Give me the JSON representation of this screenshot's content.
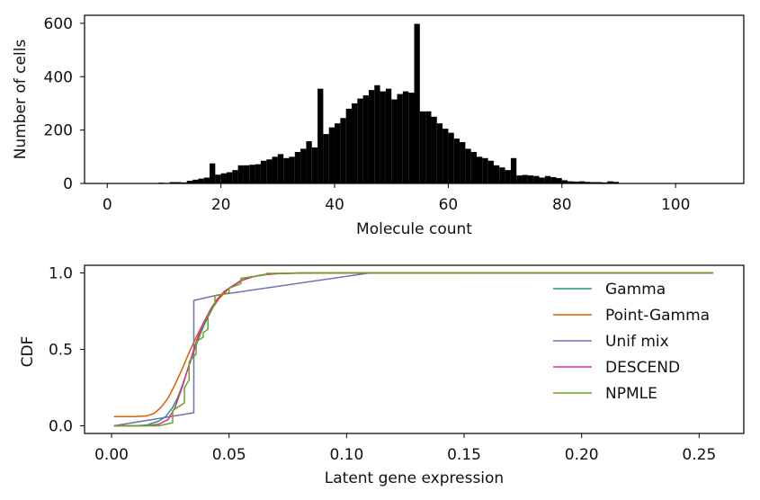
{
  "chart_data": [
    {
      "type": "bar",
      "xlabel": "Molecule count",
      "ylabel": "Number of cells",
      "xlim": [
        -4,
        112
      ],
      "ylim": [
        0,
        630
      ],
      "xticks": [
        0,
        20,
        40,
        60,
        80,
        100
      ],
      "yticks": [
        0,
        200,
        400,
        600
      ],
      "bin_width": 1,
      "bin_start": 9,
      "values": [
        3,
        2,
        5,
        5,
        4,
        10,
        14,
        18,
        22,
        75,
        33,
        38,
        42,
        50,
        68,
        68,
        70,
        72,
        85,
        90,
        100,
        110,
        95,
        100,
        118,
        130,
        158,
        135,
        355,
        185,
        210,
        225,
        245,
        280,
        300,
        318,
        330,
        350,
        368,
        345,
        355,
        315,
        335,
        345,
        340,
        598,
        270,
        270,
        250,
        225,
        205,
        190,
        168,
        155,
        130,
        118,
        100,
        95,
        85,
        68,
        60,
        50,
        95,
        30,
        32,
        30,
        28,
        22,
        28,
        24,
        20,
        12,
        8,
        7,
        8,
        6,
        5,
        5,
        4,
        8,
        6
      ]
    },
    {
      "type": "line",
      "xlabel": "Latent gene expression",
      "ylabel": "CDF",
      "xlim": [
        -0.0115,
        0.269
      ],
      "ylim": [
        -0.05,
        1.05
      ],
      "xticks": [
        0.0,
        0.05,
        0.1,
        0.15,
        0.2,
        0.25
      ],
      "xtick_labels": [
        "0.00",
        "0.05",
        "0.10",
        "0.15",
        "0.20",
        "0.25"
      ],
      "yticks": [
        0.0,
        0.5,
        1.0
      ],
      "ytick_labels": [
        "0.0",
        "0.5",
        "1.0"
      ],
      "legend_position": "top-right",
      "series": [
        {
          "name": "Gamma",
          "color": "#1b9e77",
          "x": [
            0.001,
            0.01,
            0.015,
            0.02,
            0.023,
            0.026,
            0.028,
            0.03,
            0.032,
            0.034,
            0.036,
            0.038,
            0.04,
            0.043,
            0.046,
            0.05,
            0.055,
            0.06,
            0.065,
            0.07,
            0.08,
            0.1,
            0.15,
            0.2,
            0.256
          ],
          "y": [
            0.0,
            0.0,
            0.005,
            0.03,
            0.06,
            0.12,
            0.18,
            0.26,
            0.35,
            0.44,
            0.53,
            0.61,
            0.68,
            0.77,
            0.84,
            0.9,
            0.95,
            0.975,
            0.988,
            0.995,
            0.999,
            1.0,
            1.0,
            1.0,
            1.0
          ]
        },
        {
          "name": "Point-Gamma",
          "color": "#d95f02",
          "x": [
            0.001,
            0.005,
            0.01,
            0.015,
            0.018,
            0.021,
            0.024,
            0.027,
            0.03,
            0.033,
            0.036,
            0.039,
            0.042,
            0.045,
            0.05,
            0.055,
            0.06,
            0.065,
            0.07,
            0.08,
            0.1,
            0.15,
            0.2,
            0.256
          ],
          "y": [
            0.06,
            0.06,
            0.06,
            0.065,
            0.08,
            0.12,
            0.18,
            0.27,
            0.37,
            0.48,
            0.58,
            0.67,
            0.75,
            0.82,
            0.9,
            0.95,
            0.975,
            0.988,
            0.995,
            0.999,
            1.0,
            1.0,
            1.0,
            1.0
          ]
        },
        {
          "name": "Unif mix",
          "color": "#7570b3",
          "x": [
            0.001,
            0.035,
            0.035,
            0.045,
            0.11,
            0.256
          ],
          "y": [
            0.0,
            0.085,
            0.82,
            0.855,
            1.0,
            1.0
          ]
        },
        {
          "name": "DESCEND",
          "color": "#e7298a",
          "x": [
            0.001,
            0.015,
            0.02,
            0.024,
            0.027,
            0.03,
            0.033,
            0.036,
            0.039,
            0.042,
            0.045,
            0.048,
            0.052,
            0.056,
            0.06,
            0.065,
            0.07,
            0.08,
            0.1,
            0.15,
            0.2,
            0.256
          ],
          "y": [
            0.0,
            0.0,
            0.01,
            0.04,
            0.12,
            0.25,
            0.4,
            0.55,
            0.67,
            0.76,
            0.83,
            0.88,
            0.92,
            0.955,
            0.975,
            0.99,
            0.996,
            1.0,
            1.0,
            1.0,
            1.0,
            1.0
          ]
        },
        {
          "name": "NPMLE",
          "color": "#66a61e",
          "x": [
            0.001,
            0.02,
            0.026,
            0.026,
            0.031,
            0.031,
            0.033,
            0.033,
            0.036,
            0.036,
            0.039,
            0.039,
            0.041,
            0.041,
            0.044,
            0.044,
            0.05,
            0.05,
            0.055,
            0.055,
            0.066,
            0.066,
            0.1,
            0.2,
            0.256
          ],
          "y": [
            0.0,
            0.0,
            0.02,
            0.1,
            0.15,
            0.25,
            0.3,
            0.42,
            0.47,
            0.55,
            0.58,
            0.61,
            0.63,
            0.72,
            0.8,
            0.85,
            0.87,
            0.9,
            0.93,
            0.965,
            0.99,
            0.997,
            0.999,
            1.0,
            1.0
          ]
        }
      ]
    }
  ]
}
